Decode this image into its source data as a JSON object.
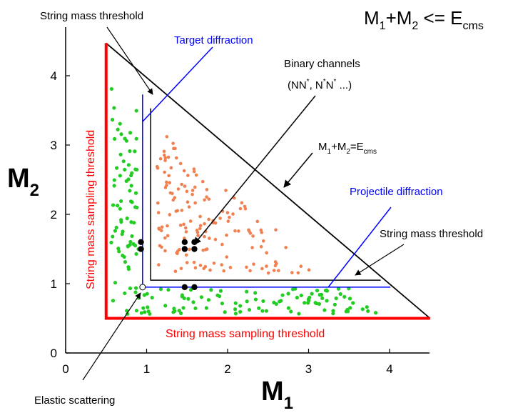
{
  "formula": {
    "main": "M",
    "sub1": "1",
    "plus": "+M",
    "sub2": "2",
    "rel": " <= E",
    "sub3": "cms"
  },
  "axes": {
    "x": {
      "label": "M",
      "sub": "1",
      "ticks": [
        "0",
        "1",
        "2",
        "3",
        "4"
      ]
    },
    "y": {
      "label": "M",
      "sub": "2",
      "ticks": [
        "0",
        "1",
        "2",
        "3",
        "4"
      ]
    }
  },
  "labels": {
    "string_threshold_top": "String mass threshold",
    "target_diffraction": "Target diffraction",
    "binary_channels": "Binary channels",
    "binary_examples": {
      "open": "(NN",
      "star1": "*",
      "mid": ", N",
      "star2": "*",
      "n": "N",
      "star3": "*",
      "close": " ...)"
    },
    "diagonal": {
      "m": "M",
      "s1": "1",
      "plus": "+M",
      "s2": "2",
      "eq": "=E",
      "s3": "cms"
    },
    "projectile_diffraction": "Projectile diffraction",
    "string_threshold_right": "String mass threshold",
    "sampling_vertical": "String mass sampling threshold",
    "sampling_horizontal": "String mass sampling threshold",
    "elastic": "Elastic scattering"
  },
  "colors": {
    "sampling": "#ff0000",
    "diffraction": "#0000ff",
    "threshold": "#000000",
    "green_dots": "#22cc22",
    "orange_dots": "#f08050",
    "ink": "#000000"
  },
  "chart_data": {
    "type": "scatter",
    "xlim": [
      0,
      4.6
    ],
    "ylim": [
      0,
      4.6
    ],
    "e_cms": 4.5,
    "threshold": 1.05,
    "sampling_threshold": 0.5,
    "diffraction_line": 0.95,
    "black_dots": [
      [
        0.93,
        1.6
      ],
      [
        0.93,
        1.5
      ],
      [
        1.47,
        1.6
      ],
      [
        1.59,
        1.6
      ],
      [
        1.47,
        1.5
      ],
      [
        1.59,
        1.5
      ],
      [
        1.47,
        0.95
      ],
      [
        1.59,
        0.95
      ]
    ],
    "elastic_point": [
      0.95,
      0.95
    ]
  }
}
